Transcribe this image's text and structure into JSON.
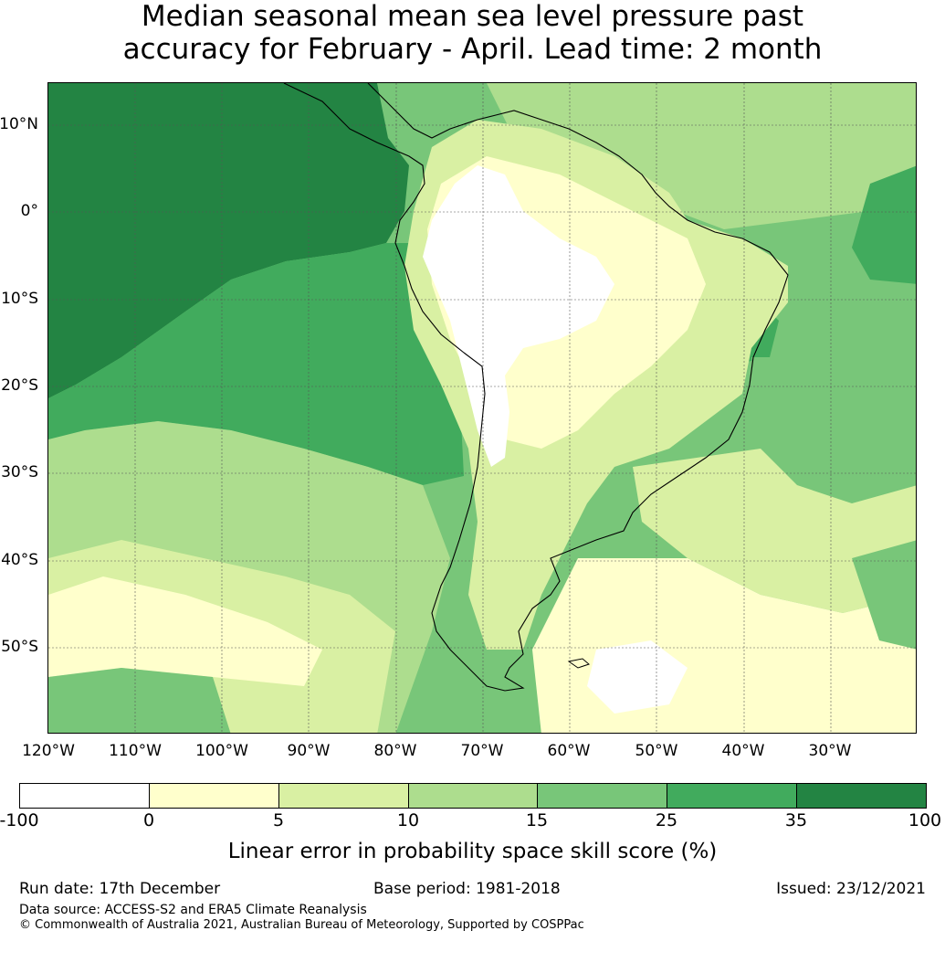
{
  "title": {
    "line1": "Median seasonal mean sea level pressure past",
    "line2": "accuracy for February - April. Lead time: 2 month"
  },
  "map": {
    "lat_labels": [
      "10°N",
      "0°",
      "10°S",
      "20°S",
      "30°S",
      "40°S",
      "50°S"
    ],
    "lon_labels": [
      "120°W",
      "110°W",
      "100°W",
      "90°W",
      "80°W",
      "70°W",
      "60°W",
      "50°W",
      "40°W",
      "30°W"
    ],
    "extent": {
      "lon_min": -120,
      "lon_max": -20,
      "lat_min": -60,
      "lat_max": 15
    }
  },
  "colorbar": {
    "ticks": [
      "-100",
      "0",
      "5",
      "10",
      "15",
      "25",
      "35",
      "100"
    ],
    "colors": [
      "#ffffff",
      "#ffffcc",
      "#d9f0a3",
      "#addd8e",
      "#78c679",
      "#41ab5d",
      "#238443"
    ],
    "label": "Linear error in probability space skill score (%)"
  },
  "footer": {
    "run_date": "Run date: 17th December",
    "base_period": "Base period: 1981-2018",
    "issued": "Issued: 23/12/2021",
    "data_source": "Data source: ACCESS-S2 and ERA5 Climate Reanalysis",
    "copyright": "© Commonwealth of Australia 2021, Australian Bureau of Meteorology, Supported by COSPPac"
  }
}
